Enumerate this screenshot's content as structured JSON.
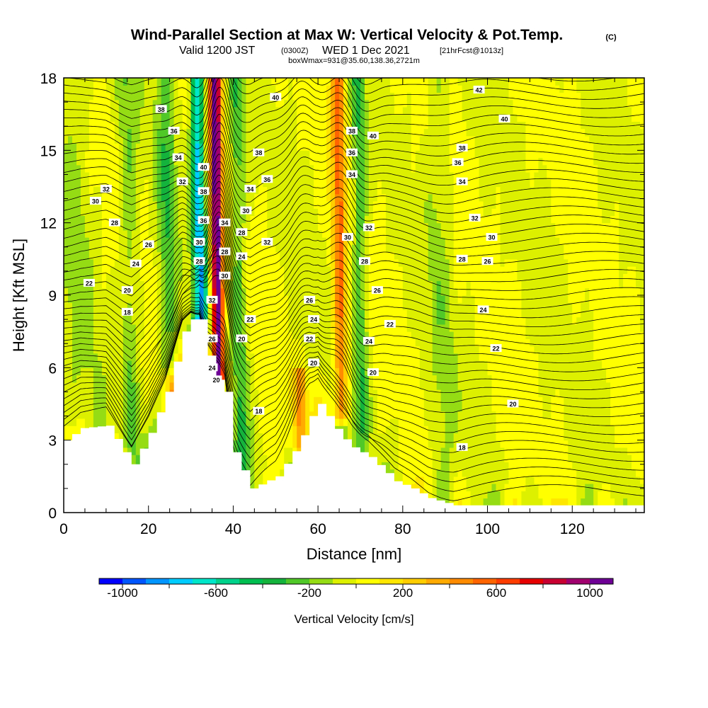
{
  "title": {
    "main": "Wind-Parallel Section at Max W: Vertical Velocity & Pot.Temp.",
    "copyright": "(C)",
    "valid_prefix": "Valid 1200 JST",
    "valid_utc": "(0300Z)",
    "valid_date": "WED 1 Dec 2021",
    "forecast": "[21hrFcst@1013z]",
    "box": "boxWmax=931@35.60,138.36,2721m"
  },
  "chart_data": {
    "type": "heatmap",
    "title": "Wind-Parallel Section at Max W: Vertical Velocity & Pot.Temp.",
    "xlabel": "Distance [nm]",
    "ylabel": "Height [Kft MSL]",
    "xlim": [
      0,
      137
    ],
    "ylim": [
      0,
      18
    ],
    "x_ticks": [
      0,
      20,
      40,
      60,
      80,
      100,
      120
    ],
    "y_ticks": [
      0,
      3,
      6,
      9,
      12,
      15,
      18
    ],
    "grid": false,
    "colorbar": {
      "label": "Vertical Velocity [cm/s]",
      "ticks": [
        -1000,
        -600,
        -200,
        200,
        600,
        1000
      ],
      "colors": [
        "#0000ff",
        "#0055ff",
        "#0095ff",
        "#00ccff",
        "#00e6c8",
        "#00d28c",
        "#00be50",
        "#14b43c",
        "#50c828",
        "#96dc14",
        "#dcf000",
        "#ffff00",
        "#ffe600",
        "#ffcd00",
        "#ffaa00",
        "#ff8c00",
        "#ff6400",
        "#ff3c00",
        "#e60000",
        "#c80032",
        "#a0006e",
        "#6e0096"
      ],
      "range": [
        -1100,
        1100
      ]
    },
    "velocity_features": [
      {
        "x": 36.5,
        "slope": 0.34,
        "z_min": 5.5,
        "z_max": 18,
        "amp": 1100,
        "width": 1.4
      },
      {
        "x": 32.5,
        "slope": 0.55,
        "z_min": 7.5,
        "z_max": 18,
        "amp": -750,
        "width": 1.6
      },
      {
        "x": 25,
        "slope": 0.45,
        "z_min": 6,
        "z_max": 18,
        "amp": -260,
        "width": 2.2
      },
      {
        "x": 16,
        "slope": 0.3,
        "z_min": 1.8,
        "z_max": 18,
        "amp": -180,
        "width": 2.2
      },
      {
        "x": 42,
        "slope": 0.4,
        "z_min": 1,
        "z_max": 18,
        "amp": -260,
        "width": 1.8
      },
      {
        "x": 65.5,
        "slope": 0.3,
        "z_min": 4,
        "z_max": 18,
        "amp": 520,
        "width": 1.6
      },
      {
        "x": 70.5,
        "slope": 0.35,
        "z_min": 2,
        "z_max": 18,
        "amp": -280,
        "width": 1.8
      },
      {
        "x": 56,
        "slope": 0.2,
        "z_min": 1,
        "z_max": 6,
        "amp": 420,
        "width": 1.4
      },
      {
        "x": 4,
        "slope": 0.5,
        "z_min": 0,
        "z_max": 18,
        "amp": -120,
        "width": 4
      },
      {
        "x": 90,
        "slope": 0.6,
        "z_min": 0,
        "z_max": 18,
        "amp": -120,
        "width": 3
      }
    ],
    "terrain": {
      "x": [
        0,
        4,
        10,
        14,
        16,
        20,
        24,
        28,
        30,
        32,
        34,
        36,
        38,
        40,
        44,
        50,
        55,
        58,
        60,
        62,
        65,
        68,
        72,
        78,
        82,
        86,
        90,
        92,
        96,
        100,
        110,
        137
      ],
      "z": [
        3.0,
        3.5,
        3.6,
        2.5,
        2.0,
        3.3,
        5.0,
        7.5,
        8.0,
        8.0,
        6.5,
        5.5,
        5.0,
        2.5,
        1.0,
        1.5,
        2.8,
        4.0,
        4.5,
        4.0,
        3.2,
        2.7,
        2.3,
        1.3,
        1.0,
        0.6,
        0.4,
        0.3,
        0.3,
        0.3,
        0.3,
        0.3
      ]
    },
    "theta_contours": [
      18,
      20,
      22,
      24,
      26,
      28,
      30,
      32,
      34,
      36,
      38,
      40,
      42
    ],
    "contour_labels": [
      {
        "x": 46,
        "z": 4.2,
        "text": "18"
      },
      {
        "x": 15,
        "z": 8.3,
        "text": "18"
      },
      {
        "x": 94,
        "z": 2.7,
        "text": "18"
      },
      {
        "x": 36,
        "z": 5.5,
        "text": "20"
      },
      {
        "x": 42,
        "z": 7.2,
        "text": "20"
      },
      {
        "x": 59,
        "z": 6.2,
        "text": "20"
      },
      {
        "x": 73,
        "z": 5.8,
        "text": "20"
      },
      {
        "x": 106,
        "z": 4.5,
        "text": "20"
      },
      {
        "x": 15,
        "z": 9.2,
        "text": "20"
      },
      {
        "x": 6,
        "z": 9.5,
        "text": "22"
      },
      {
        "x": 44,
        "z": 8.0,
        "text": "22"
      },
      {
        "x": 58,
        "z": 7.2,
        "text": "22"
      },
      {
        "x": 77,
        "z": 7.8,
        "text": "22"
      },
      {
        "x": 102,
        "z": 6.8,
        "text": "22"
      },
      {
        "x": 35,
        "z": 6.0,
        "text": "24"
      },
      {
        "x": 42,
        "z": 10.6,
        "text": "24"
      },
      {
        "x": 59,
        "z": 8.0,
        "text": "24"
      },
      {
        "x": 72,
        "z": 7.1,
        "text": "24"
      },
      {
        "x": 99,
        "z": 8.4,
        "text": "24"
      },
      {
        "x": 17,
        "z": 10.3,
        "text": "24"
      },
      {
        "x": 35,
        "z": 7.2,
        "text": "26"
      },
      {
        "x": 58,
        "z": 8.8,
        "text": "26"
      },
      {
        "x": 74,
        "z": 9.2,
        "text": "26"
      },
      {
        "x": 20,
        "z": 11.1,
        "text": "26"
      },
      {
        "x": 100,
        "z": 10.4,
        "text": "26"
      },
      {
        "x": 12,
        "z": 12.0,
        "text": "28"
      },
      {
        "x": 32,
        "z": 10.4,
        "text": "28"
      },
      {
        "x": 38,
        "z": 10.8,
        "text": "28"
      },
      {
        "x": 42,
        "z": 11.6,
        "text": "28"
      },
      {
        "x": 71,
        "z": 10.4,
        "text": "28"
      },
      {
        "x": 94,
        "z": 10.5,
        "text": "28"
      },
      {
        "x": 7.5,
        "z": 12.9,
        "text": "30"
      },
      {
        "x": 32,
        "z": 11.2,
        "text": "30"
      },
      {
        "x": 38,
        "z": 9.8,
        "text": "30"
      },
      {
        "x": 43,
        "z": 12.5,
        "text": "30"
      },
      {
        "x": 67,
        "z": 11.4,
        "text": "30"
      },
      {
        "x": 101,
        "z": 11.4,
        "text": "30"
      },
      {
        "x": 10,
        "z": 13.4,
        "text": "32"
      },
      {
        "x": 28,
        "z": 13.7,
        "text": "32"
      },
      {
        "x": 35,
        "z": 8.8,
        "text": "32"
      },
      {
        "x": 48,
        "z": 11.2,
        "text": "32"
      },
      {
        "x": 72,
        "z": 11.8,
        "text": "32"
      },
      {
        "x": 97,
        "z": 12.2,
        "text": "32"
      },
      {
        "x": 27,
        "z": 14.7,
        "text": "34"
      },
      {
        "x": 38,
        "z": 12.0,
        "text": "34"
      },
      {
        "x": 44,
        "z": 13.4,
        "text": "34"
      },
      {
        "x": 68,
        "z": 14.0,
        "text": "34"
      },
      {
        "x": 94,
        "z": 13.7,
        "text": "34"
      },
      {
        "x": 26,
        "z": 15.8,
        "text": "36"
      },
      {
        "x": 33,
        "z": 12.1,
        "text": "36"
      },
      {
        "x": 48,
        "z": 13.8,
        "text": "36"
      },
      {
        "x": 68,
        "z": 14.9,
        "text": "36"
      },
      {
        "x": 93,
        "z": 14.5,
        "text": "36"
      },
      {
        "x": 23,
        "z": 16.7,
        "text": "38"
      },
      {
        "x": 33,
        "z": 13.3,
        "text": "38"
      },
      {
        "x": 46,
        "z": 14.9,
        "text": "38"
      },
      {
        "x": 68,
        "z": 15.8,
        "text": "38"
      },
      {
        "x": 94,
        "z": 15.1,
        "text": "38"
      },
      {
        "x": 33,
        "z": 14.3,
        "text": "40"
      },
      {
        "x": 50,
        "z": 17.2,
        "text": "40"
      },
      {
        "x": 73,
        "z": 15.6,
        "text": "40"
      },
      {
        "x": 104,
        "z": 16.3,
        "text": "40"
      },
      {
        "x": 98,
        "z": 17.5,
        "text": "42"
      }
    ]
  }
}
